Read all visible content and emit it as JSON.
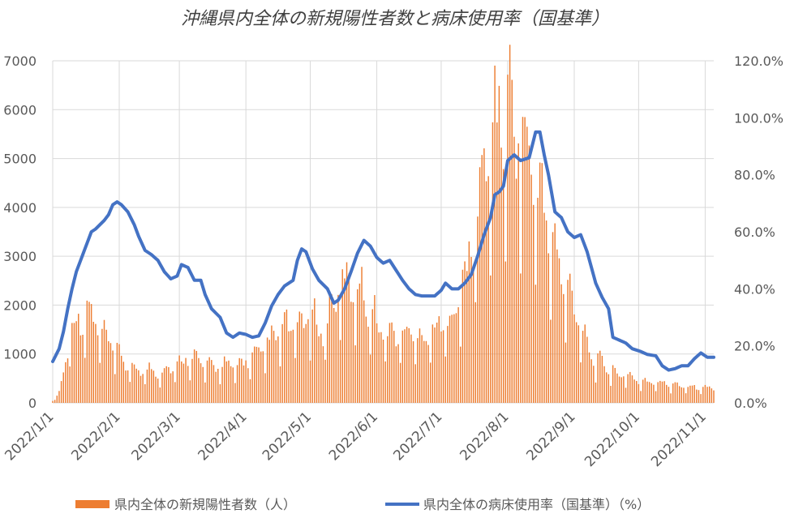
{
  "chart_data": {
    "type": "bar+line",
    "title": "沖縄県内全体の新規陽性者数と病床使用率（国基準）",
    "xlabel": "",
    "ylabel": "",
    "x_tick_labels": [
      "2022/1/1",
      "2022/2/1",
      "2022/3/1",
      "2022/4/1",
      "2022/5/1",
      "2022/6/1",
      "2022/7/1",
      "2022/8/1",
      "2022/9/1",
      "2022/10/1",
      "2022/11/1"
    ],
    "y_left_ticks": [
      "0",
      "1000",
      "2000",
      "3000",
      "4000",
      "5000",
      "6000",
      "7000"
    ],
    "y_right_ticks": [
      "0.0%",
      "20.0%",
      "40.0%",
      "60.0%",
      "80.0%",
      "100.0%",
      "120.0%"
    ],
    "ylim_left": [
      0,
      7000
    ],
    "ylim_right": [
      0,
      1.2
    ],
    "x_range": [
      "2022-01-01",
      "2022-11-05"
    ],
    "grid": true,
    "legend_position": "bottom",
    "series": [
      {
        "name": "県内全体の新規陽性者数（人）",
        "type": "bar",
        "axis": "left",
        "color": "#ED7D31",
        "anchors": [
          [
            "2022-01-01",
            50
          ],
          [
            "2022-01-04",
            200
          ],
          [
            "2022-01-06",
            600
          ],
          [
            "2022-01-08",
            1100
          ],
          [
            "2022-01-10",
            1500
          ],
          [
            "2022-01-14",
            1650
          ],
          [
            "2022-01-18",
            1750
          ],
          [
            "2022-01-21",
            1600
          ],
          [
            "2022-01-24",
            1350
          ],
          [
            "2022-01-28",
            1150
          ],
          [
            "2022-02-01",
            950
          ],
          [
            "2022-02-04",
            750
          ],
          [
            "2022-02-08",
            650
          ],
          [
            "2022-02-14",
            650
          ],
          [
            "2022-02-20",
            600
          ],
          [
            "2022-02-25",
            700
          ],
          [
            "2022-03-01",
            750
          ],
          [
            "2022-03-05",
            950
          ],
          [
            "2022-03-10",
            850
          ],
          [
            "2022-03-15",
            700
          ],
          [
            "2022-03-20",
            750
          ],
          [
            "2022-03-25",
            750
          ],
          [
            "2022-03-28",
            700
          ],
          [
            "2022-04-01",
            850
          ],
          [
            "2022-04-05",
            900
          ],
          [
            "2022-04-10",
            1100
          ],
          [
            "2022-04-15",
            1350
          ],
          [
            "2022-04-20",
            1500
          ],
          [
            "2022-04-25",
            1500
          ],
          [
            "2022-04-30",
            1700
          ],
          [
            "2022-05-03",
            1600
          ],
          [
            "2022-05-07",
            1350
          ],
          [
            "2022-05-10",
            1800
          ],
          [
            "2022-05-15",
            2300
          ],
          [
            "2022-05-20",
            2350
          ],
          [
            "2022-05-25",
            2200
          ],
          [
            "2022-05-30",
            1750
          ],
          [
            "2022-06-03",
            1450
          ],
          [
            "2022-06-08",
            1350
          ],
          [
            "2022-06-13",
            1350
          ],
          [
            "2022-06-18",
            1400
          ],
          [
            "2022-06-23",
            1300
          ],
          [
            "2022-06-28",
            1450
          ],
          [
            "2022-07-01",
            1550
          ],
          [
            "2022-07-05",
            1650
          ],
          [
            "2022-07-09",
            2000
          ],
          [
            "2022-07-13",
            2600
          ],
          [
            "2022-07-17",
            3500
          ],
          [
            "2022-07-21",
            4600
          ],
          [
            "2022-07-25",
            5400
          ],
          [
            "2022-07-29",
            5600
          ],
          [
            "2022-08-02",
            5700
          ],
          [
            "2022-08-06",
            5400
          ],
          [
            "2022-08-10",
            4900
          ],
          [
            "2022-08-14",
            4400
          ],
          [
            "2022-08-18",
            3800
          ],
          [
            "2022-08-22",
            3100
          ],
          [
            "2022-08-26",
            2500
          ],
          [
            "2022-08-31",
            2000
          ],
          [
            "2022-09-05",
            1500
          ],
          [
            "2022-09-09",
            900
          ],
          [
            "2022-09-13",
            800
          ],
          [
            "2022-09-18",
            650
          ],
          [
            "2022-09-23",
            550
          ],
          [
            "2022-09-28",
            500
          ],
          [
            "2022-10-01",
            450
          ],
          [
            "2022-10-06",
            400
          ],
          [
            "2022-10-10",
            400
          ],
          [
            "2022-10-15",
            380
          ],
          [
            "2022-10-20",
            360
          ],
          [
            "2022-10-25",
            330
          ],
          [
            "2022-10-30",
            300
          ],
          [
            "2022-11-05",
            300
          ]
        ]
      },
      {
        "name": "県内全体の病床使用率（国基準）（%）",
        "type": "line",
        "axis": "right",
        "color": "#4472C4",
        "anchors": [
          [
            "2022-01-01",
            0.145
          ],
          [
            "2022-01-04",
            0.19
          ],
          [
            "2022-01-06",
            0.25
          ],
          [
            "2022-01-08",
            0.33
          ],
          [
            "2022-01-10",
            0.4
          ],
          [
            "2022-01-12",
            0.46
          ],
          [
            "2022-01-15",
            0.52
          ],
          [
            "2022-01-17",
            0.56
          ],
          [
            "2022-01-19",
            0.6
          ],
          [
            "2022-01-21",
            0.61
          ],
          [
            "2022-01-23",
            0.625
          ],
          [
            "2022-01-25",
            0.64
          ],
          [
            "2022-01-27",
            0.66
          ],
          [
            "2022-01-29",
            0.695
          ],
          [
            "2022-01-31",
            0.705
          ],
          [
            "2022-02-02",
            0.695
          ],
          [
            "2022-02-05",
            0.67
          ],
          [
            "2022-02-08",
            0.625
          ],
          [
            "2022-02-10",
            0.585
          ],
          [
            "2022-02-13",
            0.535
          ],
          [
            "2022-02-16",
            0.52
          ],
          [
            "2022-02-19",
            0.5
          ],
          [
            "2022-02-22",
            0.46
          ],
          [
            "2022-02-25",
            0.435
          ],
          [
            "2022-02-28",
            0.445
          ],
          [
            "2022-03-02",
            0.485
          ],
          [
            "2022-03-05",
            0.475
          ],
          [
            "2022-03-08",
            0.43
          ],
          [
            "2022-03-11",
            0.43
          ],
          [
            "2022-03-13",
            0.38
          ],
          [
            "2022-03-16",
            0.33
          ],
          [
            "2022-03-20",
            0.3
          ],
          [
            "2022-03-23",
            0.245
          ],
          [
            "2022-03-26",
            0.23
          ],
          [
            "2022-03-29",
            0.245
          ],
          [
            "2022-04-01",
            0.24
          ],
          [
            "2022-04-04",
            0.23
          ],
          [
            "2022-04-07",
            0.235
          ],
          [
            "2022-04-10",
            0.28
          ],
          [
            "2022-04-13",
            0.34
          ],
          [
            "2022-04-16",
            0.38
          ],
          [
            "2022-04-19",
            0.41
          ],
          [
            "2022-04-23",
            0.43
          ],
          [
            "2022-04-25",
            0.5
          ],
          [
            "2022-04-27",
            0.54
          ],
          [
            "2022-04-29",
            0.53
          ],
          [
            "2022-05-02",
            0.47
          ],
          [
            "2022-05-05",
            0.43
          ],
          [
            "2022-05-09",
            0.4
          ],
          [
            "2022-05-12",
            0.35
          ],
          [
            "2022-05-14",
            0.36
          ],
          [
            "2022-05-17",
            0.4
          ],
          [
            "2022-05-20",
            0.46
          ],
          [
            "2022-05-23",
            0.525
          ],
          [
            "2022-05-26",
            0.57
          ],
          [
            "2022-05-29",
            0.55
          ],
          [
            "2022-06-01",
            0.51
          ],
          [
            "2022-06-04",
            0.49
          ],
          [
            "2022-06-07",
            0.5
          ],
          [
            "2022-06-10",
            0.465
          ],
          [
            "2022-06-13",
            0.43
          ],
          [
            "2022-06-16",
            0.4
          ],
          [
            "2022-06-19",
            0.38
          ],
          [
            "2022-06-22",
            0.375
          ],
          [
            "2022-06-25",
            0.375
          ],
          [
            "2022-06-28",
            0.375
          ],
          [
            "2022-07-01",
            0.395
          ],
          [
            "2022-07-03",
            0.42
          ],
          [
            "2022-07-06",
            0.4
          ],
          [
            "2022-07-09",
            0.4
          ],
          [
            "2022-07-12",
            0.42
          ],
          [
            "2022-07-15",
            0.45
          ],
          [
            "2022-07-18",
            0.515
          ],
          [
            "2022-07-21",
            0.59
          ],
          [
            "2022-07-24",
            0.65
          ],
          [
            "2022-07-26",
            0.73
          ],
          [
            "2022-07-28",
            0.74
          ],
          [
            "2022-07-30",
            0.76
          ],
          [
            "2022-08-01",
            0.85
          ],
          [
            "2022-08-04",
            0.87
          ],
          [
            "2022-08-07",
            0.85
          ],
          [
            "2022-08-11",
            0.86
          ],
          [
            "2022-08-14",
            0.95
          ],
          [
            "2022-08-16",
            0.95
          ],
          [
            "2022-08-18",
            0.87
          ],
          [
            "2022-08-20",
            0.8
          ],
          [
            "2022-08-23",
            0.67
          ],
          [
            "2022-08-26",
            0.65
          ],
          [
            "2022-08-29",
            0.6
          ],
          [
            "2022-09-01",
            0.58
          ],
          [
            "2022-09-04",
            0.59
          ],
          [
            "2022-09-07",
            0.53
          ],
          [
            "2022-09-11",
            0.42
          ],
          [
            "2022-09-14",
            0.37
          ],
          [
            "2022-09-17",
            0.33
          ],
          [
            "2022-09-19",
            0.23
          ],
          [
            "2022-09-22",
            0.22
          ],
          [
            "2022-09-25",
            0.21
          ],
          [
            "2022-09-28",
            0.19
          ],
          [
            "2022-10-02",
            0.18
          ],
          [
            "2022-10-05",
            0.17
          ],
          [
            "2022-10-09",
            0.165
          ],
          [
            "2022-10-12",
            0.13
          ],
          [
            "2022-10-15",
            0.115
          ],
          [
            "2022-10-18",
            0.12
          ],
          [
            "2022-10-21",
            0.13
          ],
          [
            "2022-10-24",
            0.13
          ],
          [
            "2022-10-27",
            0.155
          ],
          [
            "2022-10-30",
            0.175
          ],
          [
            "2022-11-02",
            0.16
          ],
          [
            "2022-11-05",
            0.16
          ]
        ]
      }
    ]
  }
}
